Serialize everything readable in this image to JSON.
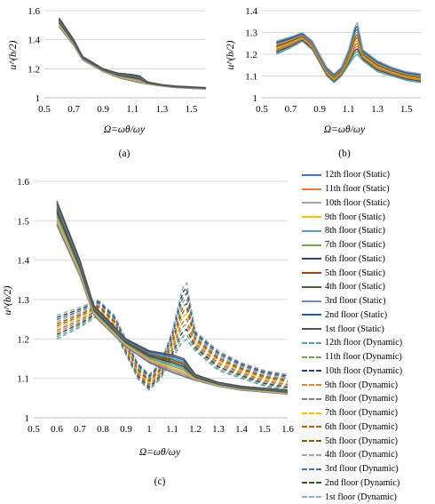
{
  "chart_data": [
    {
      "panel": "a",
      "type": "line",
      "caption": "(a)",
      "xlabel": "Ω=ωθ/ωy",
      "ylabel": "u^(b/2)",
      "xlim": [
        0.5,
        1.6
      ],
      "ylim": [
        1,
        1.6
      ],
      "xticks": [
        "0.5",
        "0.7",
        "0.9",
        "1.1",
        "1.3",
        "1.5"
      ],
      "yticks": [
        "1",
        "1.2",
        "1.4",
        "1.6"
      ],
      "grid": true,
      "envelopes": {
        "static": {
          "x": [
            0.6,
            0.7,
            0.76,
            0.9,
            1.0,
            1.1,
            1.15,
            1.2,
            1.3,
            1.4,
            1.5,
            1.6
          ],
          "upper": [
            1.55,
            1.4,
            1.285,
            1.2,
            1.17,
            1.16,
            1.15,
            1.11,
            1.09,
            1.08,
            1.075,
            1.07
          ],
          "lower": [
            1.49,
            1.36,
            1.26,
            1.18,
            1.14,
            1.115,
            1.105,
            1.095,
            1.08,
            1.07,
            1.065,
            1.06
          ]
        }
      }
    },
    {
      "panel": "b",
      "type": "line",
      "caption": "(b)",
      "xlabel": "Ω=ωθ/ωy",
      "ylabel": "u^(b/2)",
      "xlim": [
        0.5,
        1.6
      ],
      "ylim": [
        1,
        1.4
      ],
      "xticks": [
        "0.5",
        "0.7",
        "0.9",
        "1.1",
        "1.3",
        "1.5"
      ],
      "yticks": [
        "1",
        "1.1",
        "1.2",
        "1.3",
        "1.4"
      ],
      "grid": true,
      "envelopes": {
        "dynamic": {
          "x": [
            0.6,
            0.7,
            0.78,
            0.85,
            0.9,
            0.95,
            1.0,
            1.05,
            1.1,
            1.14,
            1.16,
            1.2,
            1.3,
            1.4,
            1.5,
            1.6
          ],
          "upper": [
            1.26,
            1.28,
            1.3,
            1.26,
            1.2,
            1.14,
            1.11,
            1.14,
            1.22,
            1.32,
            1.35,
            1.22,
            1.17,
            1.14,
            1.12,
            1.11
          ],
          "lower": [
            1.2,
            1.23,
            1.26,
            1.22,
            1.16,
            1.1,
            1.07,
            1.1,
            1.15,
            1.19,
            1.2,
            1.17,
            1.12,
            1.1,
            1.08,
            1.07
          ]
        }
      }
    },
    {
      "panel": "c",
      "type": "line",
      "caption": "(c)",
      "xlabel": "Ω=ωθ/ωy",
      "ylabel": "u^(b/2)",
      "xlim": [
        0.5,
        1.6
      ],
      "ylim": [
        1,
        1.6
      ],
      "xticks": [
        "0.5",
        "0.6",
        "0.7",
        "0.8",
        "0.9",
        "1",
        "1.1",
        "1.2",
        "1.3",
        "1.4",
        "1.5",
        "1.6"
      ],
      "yticks": [
        "1",
        "1.1",
        "1.2",
        "1.3",
        "1.4",
        "1.5",
        "1.6"
      ],
      "grid": true,
      "legend_position": "right",
      "envelopes": {
        "static": {
          "x": [
            0.6,
            0.7,
            0.76,
            0.9,
            1.0,
            1.1,
            1.15,
            1.2,
            1.3,
            1.4,
            1.5,
            1.6
          ],
          "upper": [
            1.55,
            1.4,
            1.285,
            1.2,
            1.17,
            1.16,
            1.15,
            1.11,
            1.09,
            1.08,
            1.075,
            1.07
          ],
          "lower": [
            1.49,
            1.36,
            1.26,
            1.18,
            1.14,
            1.115,
            1.105,
            1.095,
            1.08,
            1.07,
            1.065,
            1.06
          ]
        },
        "dynamic": {
          "x": [
            0.6,
            0.7,
            0.78,
            0.85,
            0.9,
            0.95,
            1.0,
            1.05,
            1.1,
            1.14,
            1.16,
            1.2,
            1.3,
            1.4,
            1.5,
            1.6
          ],
          "upper": [
            1.26,
            1.28,
            1.3,
            1.26,
            1.2,
            1.14,
            1.11,
            1.14,
            1.22,
            1.32,
            1.35,
            1.22,
            1.17,
            1.14,
            1.12,
            1.11
          ],
          "lower": [
            1.2,
            1.23,
            1.26,
            1.22,
            1.16,
            1.1,
            1.07,
            1.1,
            1.15,
            1.19,
            1.2,
            1.17,
            1.12,
            1.1,
            1.08,
            1.07
          ]
        }
      },
      "series": [
        {
          "name": "12th floor (Static)",
          "color": "#4472c4",
          "style": "solid"
        },
        {
          "name": "11th floor (Static)",
          "color": "#ed7d31",
          "style": "solid"
        },
        {
          "name": "10th floor (Static)",
          "color": "#a5a5a5",
          "style": "solid"
        },
        {
          "name": "9th floor (Static)",
          "color": "#ffc000",
          "style": "solid"
        },
        {
          "name": "8th floor (Static)",
          "color": "#5b9bd5",
          "style": "solid"
        },
        {
          "name": "7th floor (Static)",
          "color": "#70ad47",
          "style": "solid"
        },
        {
          "name": "6th floor (Static)",
          "color": "#264478",
          "style": "solid"
        },
        {
          "name": "5th floor (Static)",
          "color": "#9e480e",
          "style": "solid"
        },
        {
          "name": "4th floor (Static)",
          "color": "#43682b",
          "style": "solid"
        },
        {
          "name": "3rd floor (Static)",
          "color": "#698ed0",
          "style": "solid"
        },
        {
          "name": "2nd floor (Static)",
          "color": "#255e91",
          "style": "solid"
        },
        {
          "name": "1st floor (Static)",
          "color": "#5e4c4c",
          "style": "solid"
        },
        {
          "name": "12th floor (Dynamic)",
          "color": "#5b9bd5",
          "style": "dashed"
        },
        {
          "name": "11th floor (Dynamic)",
          "color": "#70ad47",
          "style": "dashed"
        },
        {
          "name": "10th floor (Dynamic)",
          "color": "#264478",
          "style": "dashed"
        },
        {
          "name": "9th floor (Dynamic)",
          "color": "#ed7d31",
          "style": "dashed"
        },
        {
          "name": "8th floor (Dynamic)",
          "color": "#7f7f7f",
          "style": "dashed"
        },
        {
          "name": "7th floor (Dynamic)",
          "color": "#ffc000",
          "style": "dashed"
        },
        {
          "name": "6th floor (Dynamic)",
          "color": "#c55a11",
          "style": "dashed"
        },
        {
          "name": "5th floor (Dynamic)",
          "color": "#7f6000",
          "style": "dashed"
        },
        {
          "name": "4th floor (Dynamic)",
          "color": "#a5a5a5",
          "style": "dashed"
        },
        {
          "name": "3rd floor (Dynamic)",
          "color": "#4472c4",
          "style": "dashed"
        },
        {
          "name": "2nd floor (Dynamic)",
          "color": "#375623",
          "style": "dashed"
        },
        {
          "name": "1st floor (Dynamic)",
          "color": "#8faadc",
          "style": "dashed"
        }
      ]
    }
  ]
}
